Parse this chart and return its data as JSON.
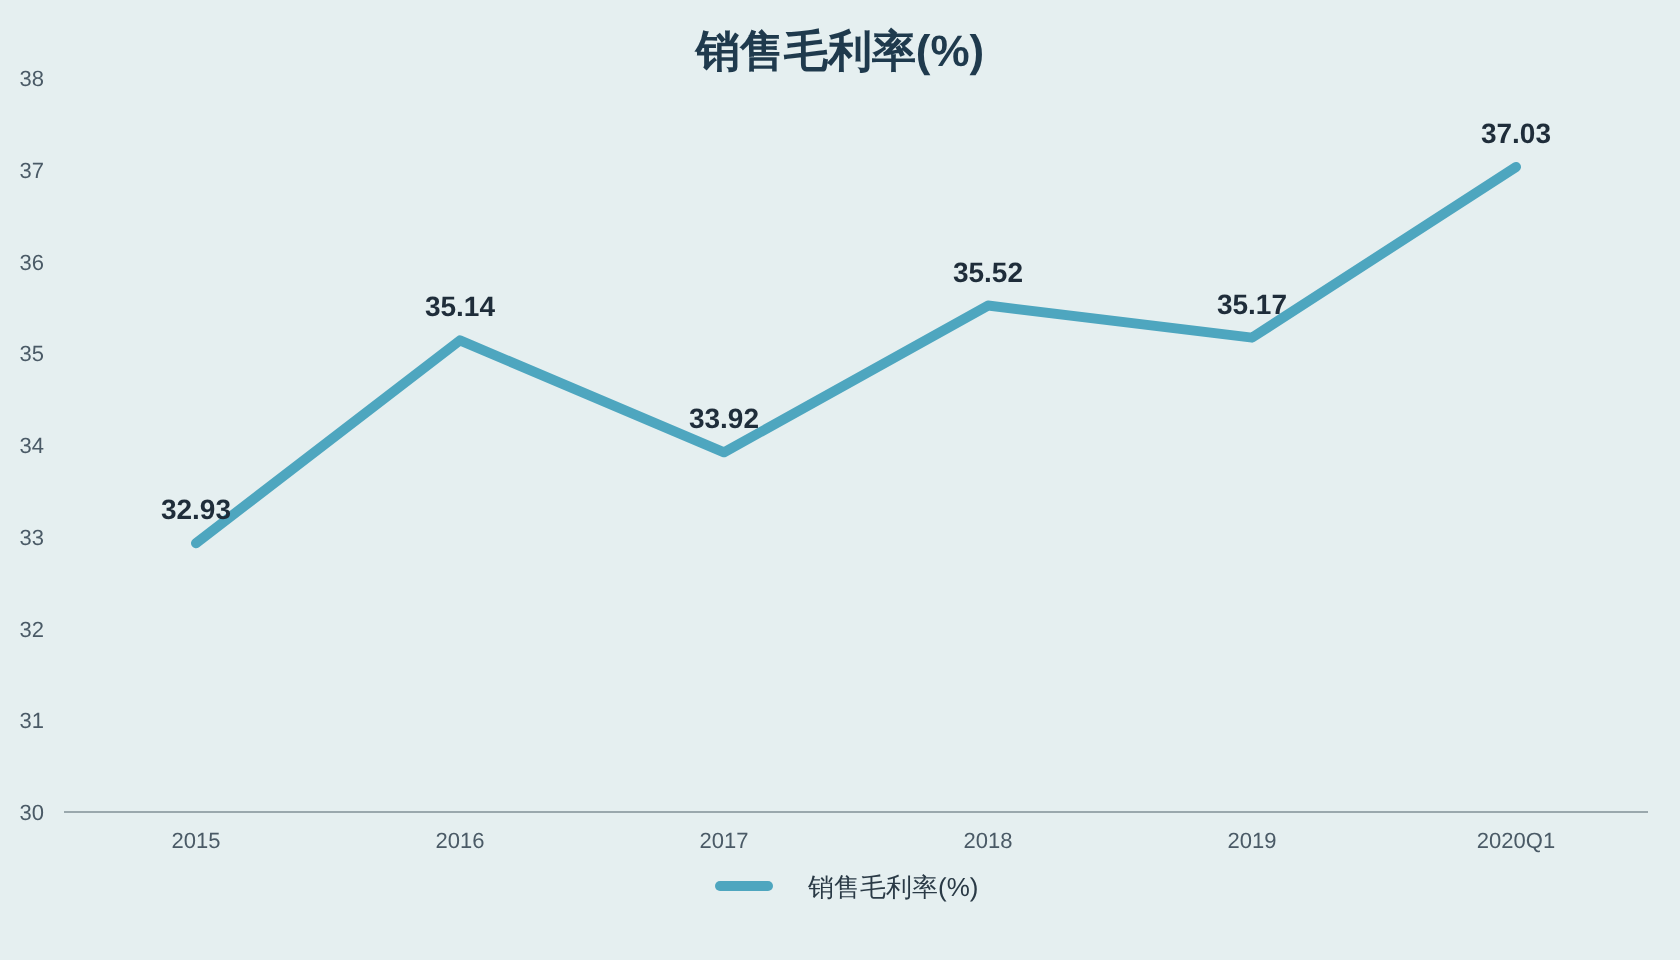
{
  "chart_data": {
    "type": "line",
    "title": "销售毛利率(%)",
    "categories": [
      "2015",
      "2016",
      "2017",
      "2018",
      "2019",
      "2020Q1"
    ],
    "series": [
      {
        "name": "销售毛利率(%)",
        "color": "#4ea6bf",
        "values": [
          32.93,
          35.14,
          33.92,
          35.52,
          35.17,
          37.03
        ]
      }
    ],
    "ylim": [
      30,
      38
    ],
    "yticks": [
      30,
      31,
      32,
      33,
      34,
      35,
      36,
      37,
      38
    ],
    "data_labels": true,
    "legend": "bottom"
  }
}
